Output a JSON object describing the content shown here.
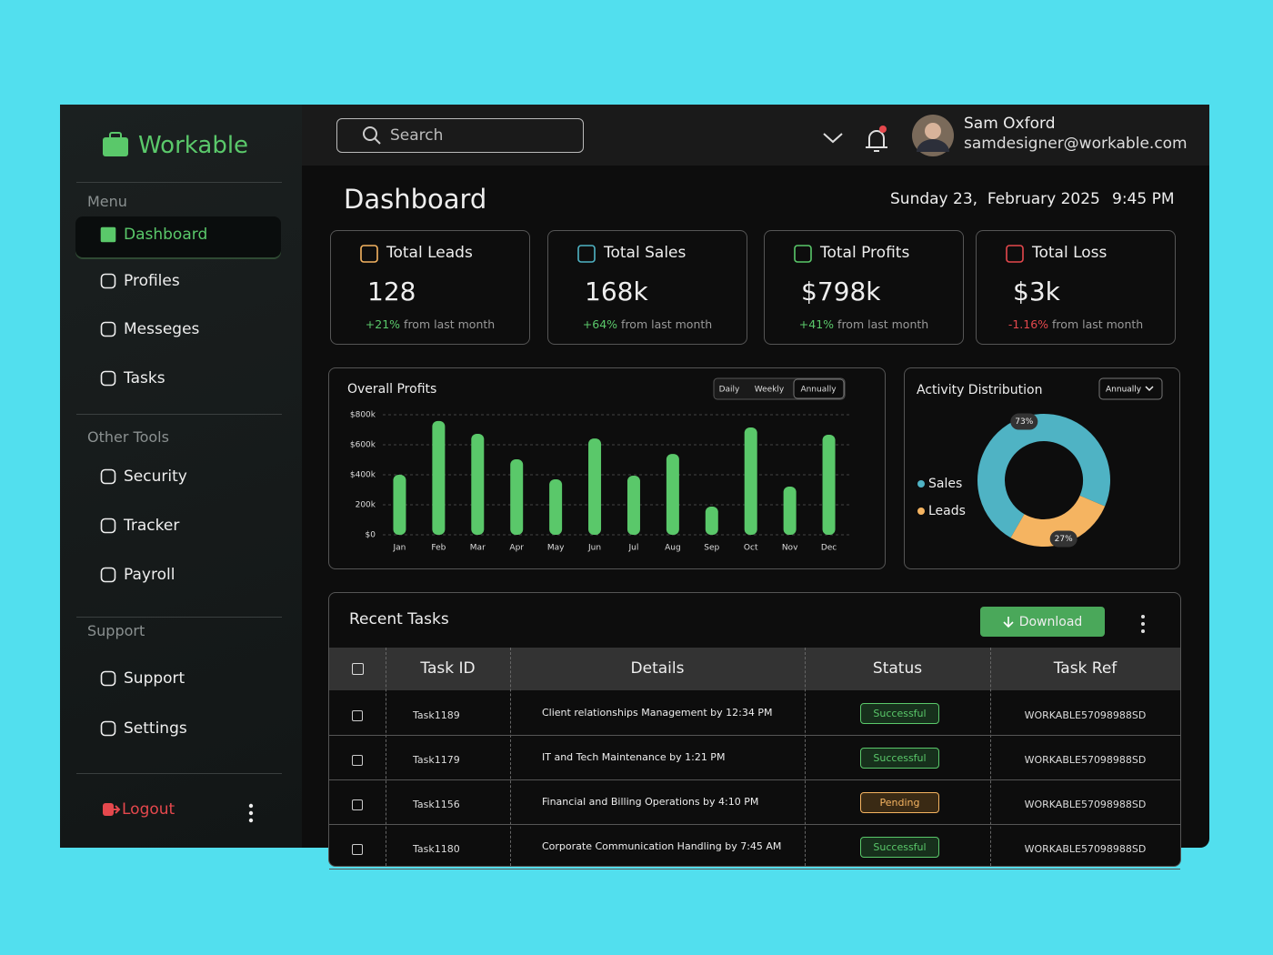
{
  "sidebar": {
    "brand": "Workable",
    "sections": [
      {
        "title": "Menu",
        "items": [
          "Dashboard",
          "Profiles",
          "Messeges",
          "Tasks"
        ]
      },
      {
        "title": "Other Tools",
        "items": [
          "Security",
          "Tracker",
          "Payroll"
        ]
      },
      {
        "title": "Support",
        "items": [
          "Support",
          "Settings"
        ]
      }
    ],
    "logout": "Logout"
  },
  "header": {
    "search_placeholder": "Search",
    "user_name": "Sam Oxford",
    "user_email": "samdesigner@workable.com"
  },
  "page": {
    "title": "Dashboard",
    "date": "Sunday 23,  February 2025",
    "time": "9:45 PM"
  },
  "stats": [
    {
      "label": "Total Leads",
      "value": "128",
      "change": "+21%",
      "note": "from last month"
    },
    {
      "label": "Total Sales",
      "value": "168k",
      "change": "+64%",
      "note": "from last month"
    },
    {
      "label": "Total Profits",
      "value": "$798k",
      "change": "+41%",
      "note": "from last month"
    },
    {
      "label": "Total Loss",
      "value": "$3k",
      "change": "-1.16%",
      "note": "from last month"
    }
  ],
  "profits_chart": {
    "type": "bar",
    "title": "Overall Profits",
    "periods": [
      "Daily",
      "Weekly",
      "Annually"
    ],
    "categories": [
      "Jan",
      "Feb",
      "Mar",
      "Apr",
      "May",
      "Jun",
      "Jul",
      "Aug",
      "Sep",
      "Oct",
      "Nov",
      "Dec"
    ],
    "values": [
      400,
      758,
      673,
      503,
      370,
      642,
      394,
      539,
      188,
      715,
      321,
      667
    ],
    "color": "#5ac86a",
    "ylim": [
      0,
      800
    ],
    "yticks": [
      {
        "value": 0,
        "label": "$0"
      },
      {
        "value": 200,
        "label": "200k"
      },
      {
        "value": 400,
        "label": "$400k"
      },
      {
        "value": 600,
        "label": "$600k"
      },
      {
        "value": 800,
        "label": "$800k"
      }
    ],
    "grid": true
  },
  "activity_chart": {
    "type": "donut",
    "title": "Activity Distribution",
    "period": "Annually",
    "categories": [
      "Sales",
      "Leads"
    ],
    "values": [
      73,
      27
    ],
    "value_labels": [
      "73%",
      "27%"
    ],
    "colors": [
      "#4fb3c4",
      "#f5b461"
    ]
  },
  "tasks": {
    "title": "Recent Tasks",
    "download": "Download",
    "columns": [
      "Task ID",
      "Details",
      "Status",
      "Task Ref"
    ],
    "rows": [
      [
        "Task1189",
        "Client relationships Management by 12:34 PM",
        "Successful",
        "WORKABLE57098988SD"
      ],
      [
        "Task1179",
        "IT and Tech Maintenance by 1:21 PM",
        "Successful",
        "WORKABLE57098988SD"
      ],
      [
        "Task1156",
        "Financial and Billing Operations by 4:10 PM",
        "Pending",
        "WORKABLE57098988SD"
      ],
      [
        "Task1180",
        "Corporate Communication Handling by 7:45 AM",
        "Successful",
        "WORKABLE57098988SD"
      ]
    ]
  }
}
